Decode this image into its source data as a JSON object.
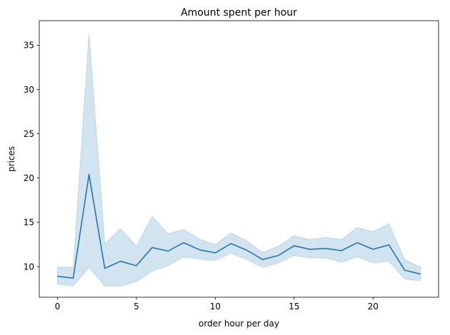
{
  "chart_data": {
    "type": "line",
    "title": "Amount spent per hour",
    "xlabel": "order hour per day",
    "ylabel": "prices",
    "xlim": [
      -1.15,
      24.15
    ],
    "ylim": [
      6.54,
      37.77
    ],
    "xticks": [
      0,
      5,
      10,
      15,
      20
    ],
    "yticks": [
      10,
      15,
      20,
      25,
      30,
      35
    ],
    "grid": false,
    "legend": "none",
    "colors": {
      "line": "#1f77b4",
      "band": "#1f77b4",
      "axis": "#000000",
      "background": "#ffffff"
    },
    "series": [
      {
        "x": [
          0,
          1,
          2,
          3,
          4,
          5,
          6,
          7,
          8,
          9,
          10,
          11,
          12,
          13,
          14,
          15,
          16,
          17,
          18,
          19,
          20,
          21,
          22,
          23
        ],
        "values": [
          8.9,
          8.7,
          20.4,
          9.8,
          10.6,
          10.1,
          12.15,
          11.75,
          12.7,
          11.9,
          11.55,
          12.6,
          11.85,
          10.8,
          11.25,
          12.35,
          11.95,
          12.05,
          11.8,
          12.7,
          11.95,
          12.45,
          9.6,
          9.15
        ],
        "ci_lower": [
          8.0,
          7.8,
          9.9,
          7.8,
          7.8,
          8.3,
          9.5,
          10.1,
          11.1,
          10.85,
          10.7,
          11.5,
          10.8,
          9.9,
          10.4,
          11.25,
          11.0,
          10.95,
          10.5,
          11.1,
          10.4,
          10.6,
          8.6,
          8.4
        ],
        "ci_upper": [
          9.95,
          9.9,
          36.3,
          12.6,
          14.3,
          12.3,
          15.7,
          13.7,
          14.2,
          13.1,
          12.5,
          13.8,
          12.9,
          11.6,
          12.3,
          13.5,
          13.05,
          13.3,
          13.05,
          14.4,
          13.95,
          14.85,
          10.8,
          9.95
        ]
      }
    ]
  }
}
